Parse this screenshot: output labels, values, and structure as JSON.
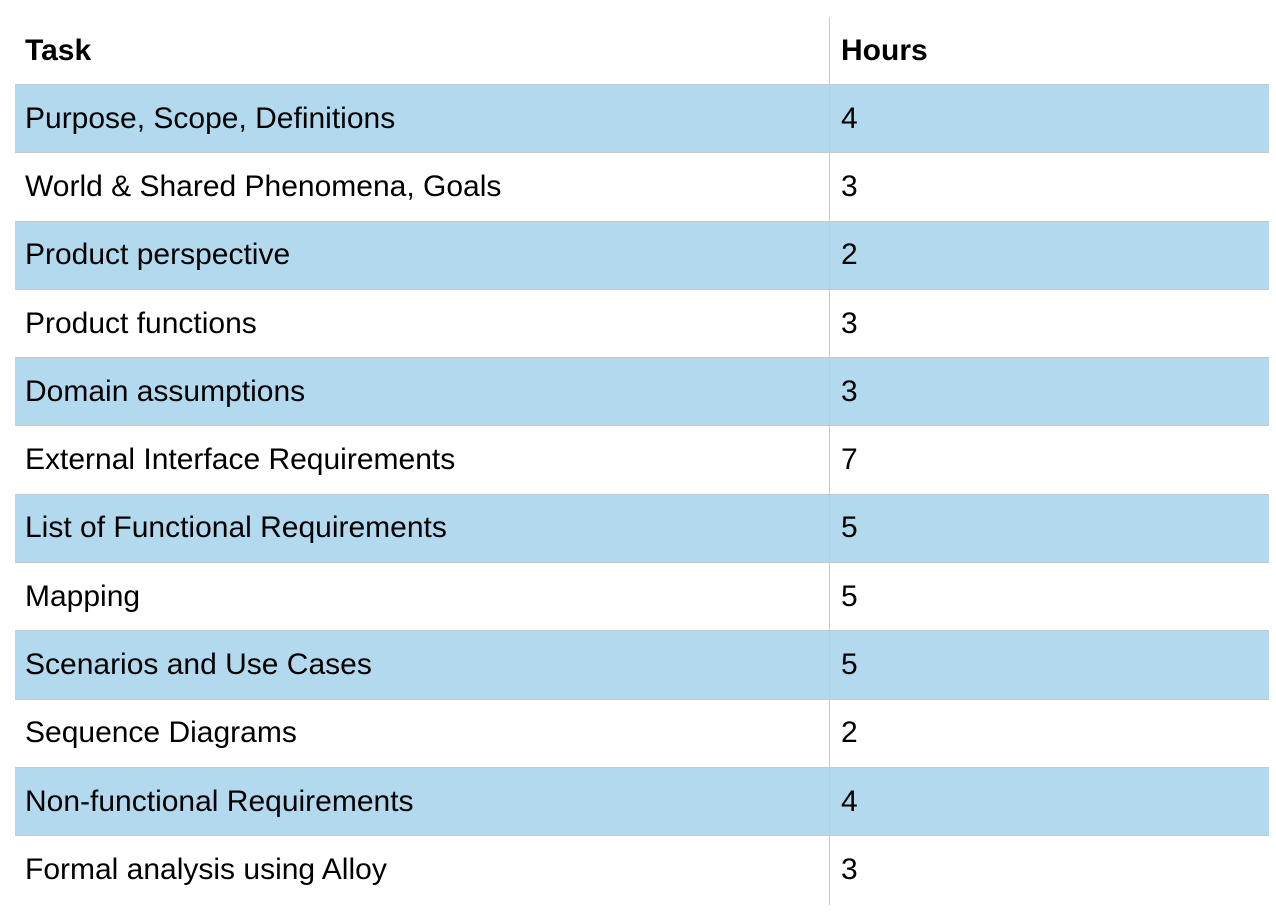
{
  "table": {
    "headers": {
      "task": "Task",
      "hours": "Hours"
    },
    "rows": [
      {
        "task": "Purpose, Scope, Definitions",
        "hours": "4"
      },
      {
        "task": "World & Shared Phenomena, Goals",
        "hours": "3"
      },
      {
        "task": "Product perspective",
        "hours": "2"
      },
      {
        "task": "Product functions",
        "hours": "3"
      },
      {
        "task": "Domain assumptions",
        "hours": "3"
      },
      {
        "task": "External Interface Requirements",
        "hours": "7"
      },
      {
        "task": "List of Functional Requirements",
        "hours": "5"
      },
      {
        "task": "Mapping",
        "hours": "5"
      },
      {
        "task": "Scenarios and Use Cases",
        "hours": "5"
      },
      {
        "task": "Sequence Diagrams",
        "hours": "2"
      },
      {
        "task": "Non-functional Requirements",
        "hours": "4"
      },
      {
        "task": "Formal analysis using Alloy",
        "hours": "3"
      }
    ]
  },
  "colors": {
    "shaded_row": "#b3d9ee",
    "grid_line": "#c8c8c8"
  }
}
